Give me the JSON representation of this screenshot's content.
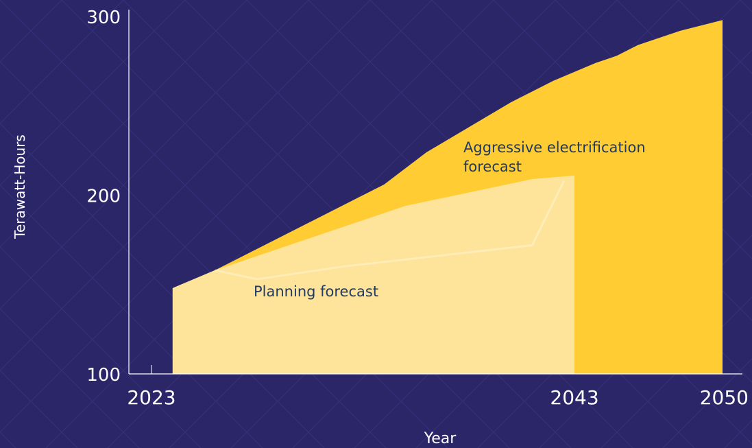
{
  "chart_data": {
    "type": "area",
    "xlabel": "Year",
    "ylabel": "Terawatt-Hours",
    "ylim": [
      100,
      300
    ],
    "y_ticks": [
      "100",
      "200",
      "300"
    ],
    "x_ticks": [
      "2023",
      "2043",
      "2050"
    ],
    "grid": false,
    "series": [
      {
        "name": "Aggressive electrification forecast",
        "color": "#ffcc33",
        "points": [
          [
            2024,
            148
          ],
          [
            2026,
            158
          ],
          [
            2028,
            170
          ],
          [
            2030,
            182
          ],
          [
            2032,
            194
          ],
          [
            2034,
            206
          ],
          [
            2036,
            224
          ],
          [
            2038,
            238
          ],
          [
            2040,
            252
          ],
          [
            2042,
            264
          ],
          [
            2044,
            274
          ],
          [
            2045,
            278
          ],
          [
            2046,
            284
          ],
          [
            2048,
            292
          ],
          [
            2050,
            298
          ]
        ]
      },
      {
        "name": "Planning forecast",
        "color": "#fee39b",
        "points": [
          [
            2024,
            148
          ],
          [
            2026,
            158
          ],
          [
            2027,
            162
          ],
          [
            2029,
            170
          ],
          [
            2031,
            178
          ],
          [
            2033,
            186
          ],
          [
            2035,
            194
          ],
          [
            2037,
            199
          ],
          [
            2039,
            204
          ],
          [
            2041,
            209
          ],
          [
            2043,
            211
          ]
        ]
      }
    ]
  }
}
